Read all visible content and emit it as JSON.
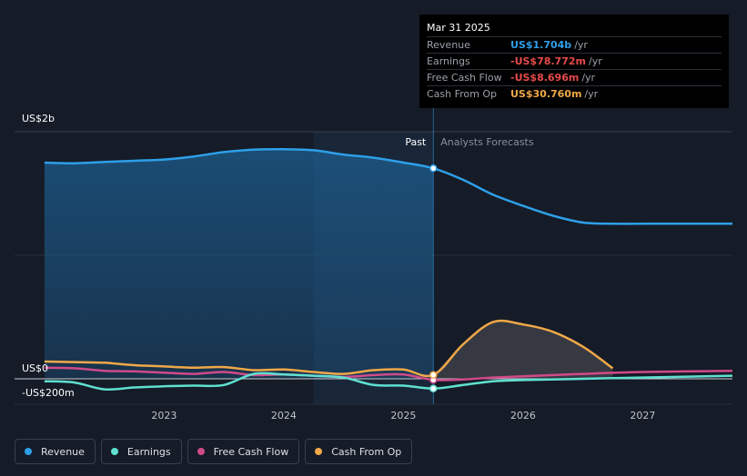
{
  "tooltip": {
    "date": "Mar 31 2025",
    "rows": [
      {
        "label": "Revenue",
        "value": "US$1.704b",
        "unit": "/yr",
        "color": "#2e9fe8"
      },
      {
        "label": "Earnings",
        "value": "-US$78.772m",
        "unit": "/yr",
        "color": "#e84a4a"
      },
      {
        "label": "Free Cash Flow",
        "value": "-US$8.696m",
        "unit": "/yr",
        "color": "#e84a4a"
      },
      {
        "label": "Cash From Op",
        "value": "US$30.760m",
        "unit": "/yr",
        "color": "#f0a848"
      }
    ]
  },
  "legend": [
    {
      "label": "Revenue",
      "color": "#2e9fe8"
    },
    {
      "label": "Earnings",
      "color": "#5fe0d0"
    },
    {
      "label": "Free Cash Flow",
      "color": "#d04a8a"
    },
    {
      "label": "Cash From Op",
      "color": "#f0a848"
    }
  ],
  "chart_data": {
    "type": "line",
    "past_label": "Past",
    "forecast_label": "Analysts Forecasts",
    "y_ticks": [
      {
        "value": 2000,
        "label": "US$2b"
      },
      {
        "value": 0,
        "label": "US$0"
      },
      {
        "value": -200,
        "label": "-US$200m"
      }
    ],
    "x_ticks": [
      {
        "value": 2023,
        "label": "2023"
      },
      {
        "value": 2024,
        "label": "2024"
      },
      {
        "value": 2025,
        "label": "2025"
      },
      {
        "value": 2026,
        "label": "2026"
      },
      {
        "value": 2027,
        "label": "2027"
      }
    ],
    "xlim": [
      2021.75,
      2027.75
    ],
    "ylim": [
      -200,
      2000
    ],
    "divider_x": 2025.25,
    "highlight_range": [
      2024.25,
      2025.25
    ],
    "series": [
      {
        "name": "Revenue",
        "color": "#2e9fe8",
        "points": [
          [
            2022.0,
            1750
          ],
          [
            2022.25,
            1745
          ],
          [
            2022.5,
            1755
          ],
          [
            2022.75,
            1765
          ],
          [
            2023.0,
            1775
          ],
          [
            2023.25,
            1800
          ],
          [
            2023.5,
            1835
          ],
          [
            2023.75,
            1855
          ],
          [
            2024.0,
            1858
          ],
          [
            2024.25,
            1850
          ],
          [
            2024.5,
            1815
          ],
          [
            2024.75,
            1790
          ],
          [
            2025.0,
            1750
          ],
          [
            2025.25,
            1704
          ],
          [
            2025.5,
            1610
          ],
          [
            2025.75,
            1490
          ],
          [
            2026.0,
            1400
          ],
          [
            2026.25,
            1320
          ],
          [
            2026.5,
            1265
          ],
          [
            2026.75,
            1255
          ],
          [
            2027.0,
            1255
          ],
          [
            2027.5,
            1255
          ],
          [
            2027.75,
            1255
          ]
        ]
      },
      {
        "name": "Earnings",
        "color": "#5fe0d0",
        "points": [
          [
            2022.0,
            -20
          ],
          [
            2022.25,
            -30
          ],
          [
            2022.5,
            -85
          ],
          [
            2022.75,
            -70
          ],
          [
            2023.0,
            -60
          ],
          [
            2023.25,
            -55
          ],
          [
            2023.5,
            -50
          ],
          [
            2023.75,
            40
          ],
          [
            2024.0,
            35
          ],
          [
            2024.25,
            25
          ],
          [
            2024.5,
            10
          ],
          [
            2024.75,
            -50
          ],
          [
            2025.0,
            -55
          ],
          [
            2025.25,
            -79
          ],
          [
            2025.5,
            -50
          ],
          [
            2025.75,
            -20
          ],
          [
            2026.0,
            -10
          ],
          [
            2026.5,
            0
          ],
          [
            2027.0,
            10
          ],
          [
            2027.75,
            25
          ]
        ]
      },
      {
        "name": "Free Cash Flow",
        "color": "#d04a8a",
        "points": [
          [
            2022.0,
            90
          ],
          [
            2022.25,
            85
          ],
          [
            2022.5,
            65
          ],
          [
            2022.75,
            60
          ],
          [
            2023.0,
            50
          ],
          [
            2023.25,
            40
          ],
          [
            2023.5,
            55
          ],
          [
            2023.75,
            30
          ],
          [
            2024.0,
            35
          ],
          [
            2024.25,
            25
          ],
          [
            2024.5,
            15
          ],
          [
            2024.75,
            30
          ],
          [
            2025.0,
            35
          ],
          [
            2025.25,
            -9
          ],
          [
            2025.5,
            -5
          ],
          [
            2025.75,
            10
          ],
          [
            2026.0,
            20
          ],
          [
            2026.5,
            40
          ],
          [
            2027.0,
            55
          ],
          [
            2027.75,
            65
          ]
        ]
      },
      {
        "name": "Cash From Op",
        "color": "#f0a848",
        "points": [
          [
            2022.0,
            140
          ],
          [
            2022.25,
            135
          ],
          [
            2022.5,
            130
          ],
          [
            2022.75,
            110
          ],
          [
            2023.0,
            100
          ],
          [
            2023.25,
            90
          ],
          [
            2023.5,
            95
          ],
          [
            2023.75,
            70
          ],
          [
            2024.0,
            75
          ],
          [
            2024.25,
            55
          ],
          [
            2024.5,
            40
          ],
          [
            2024.75,
            70
          ],
          [
            2025.0,
            75
          ],
          [
            2025.25,
            31
          ],
          [
            2025.5,
            280
          ],
          [
            2025.75,
            460
          ],
          [
            2026.0,
            440
          ],
          [
            2026.25,
            380
          ],
          [
            2026.5,
            260
          ],
          [
            2026.75,
            85
          ]
        ]
      }
    ]
  }
}
